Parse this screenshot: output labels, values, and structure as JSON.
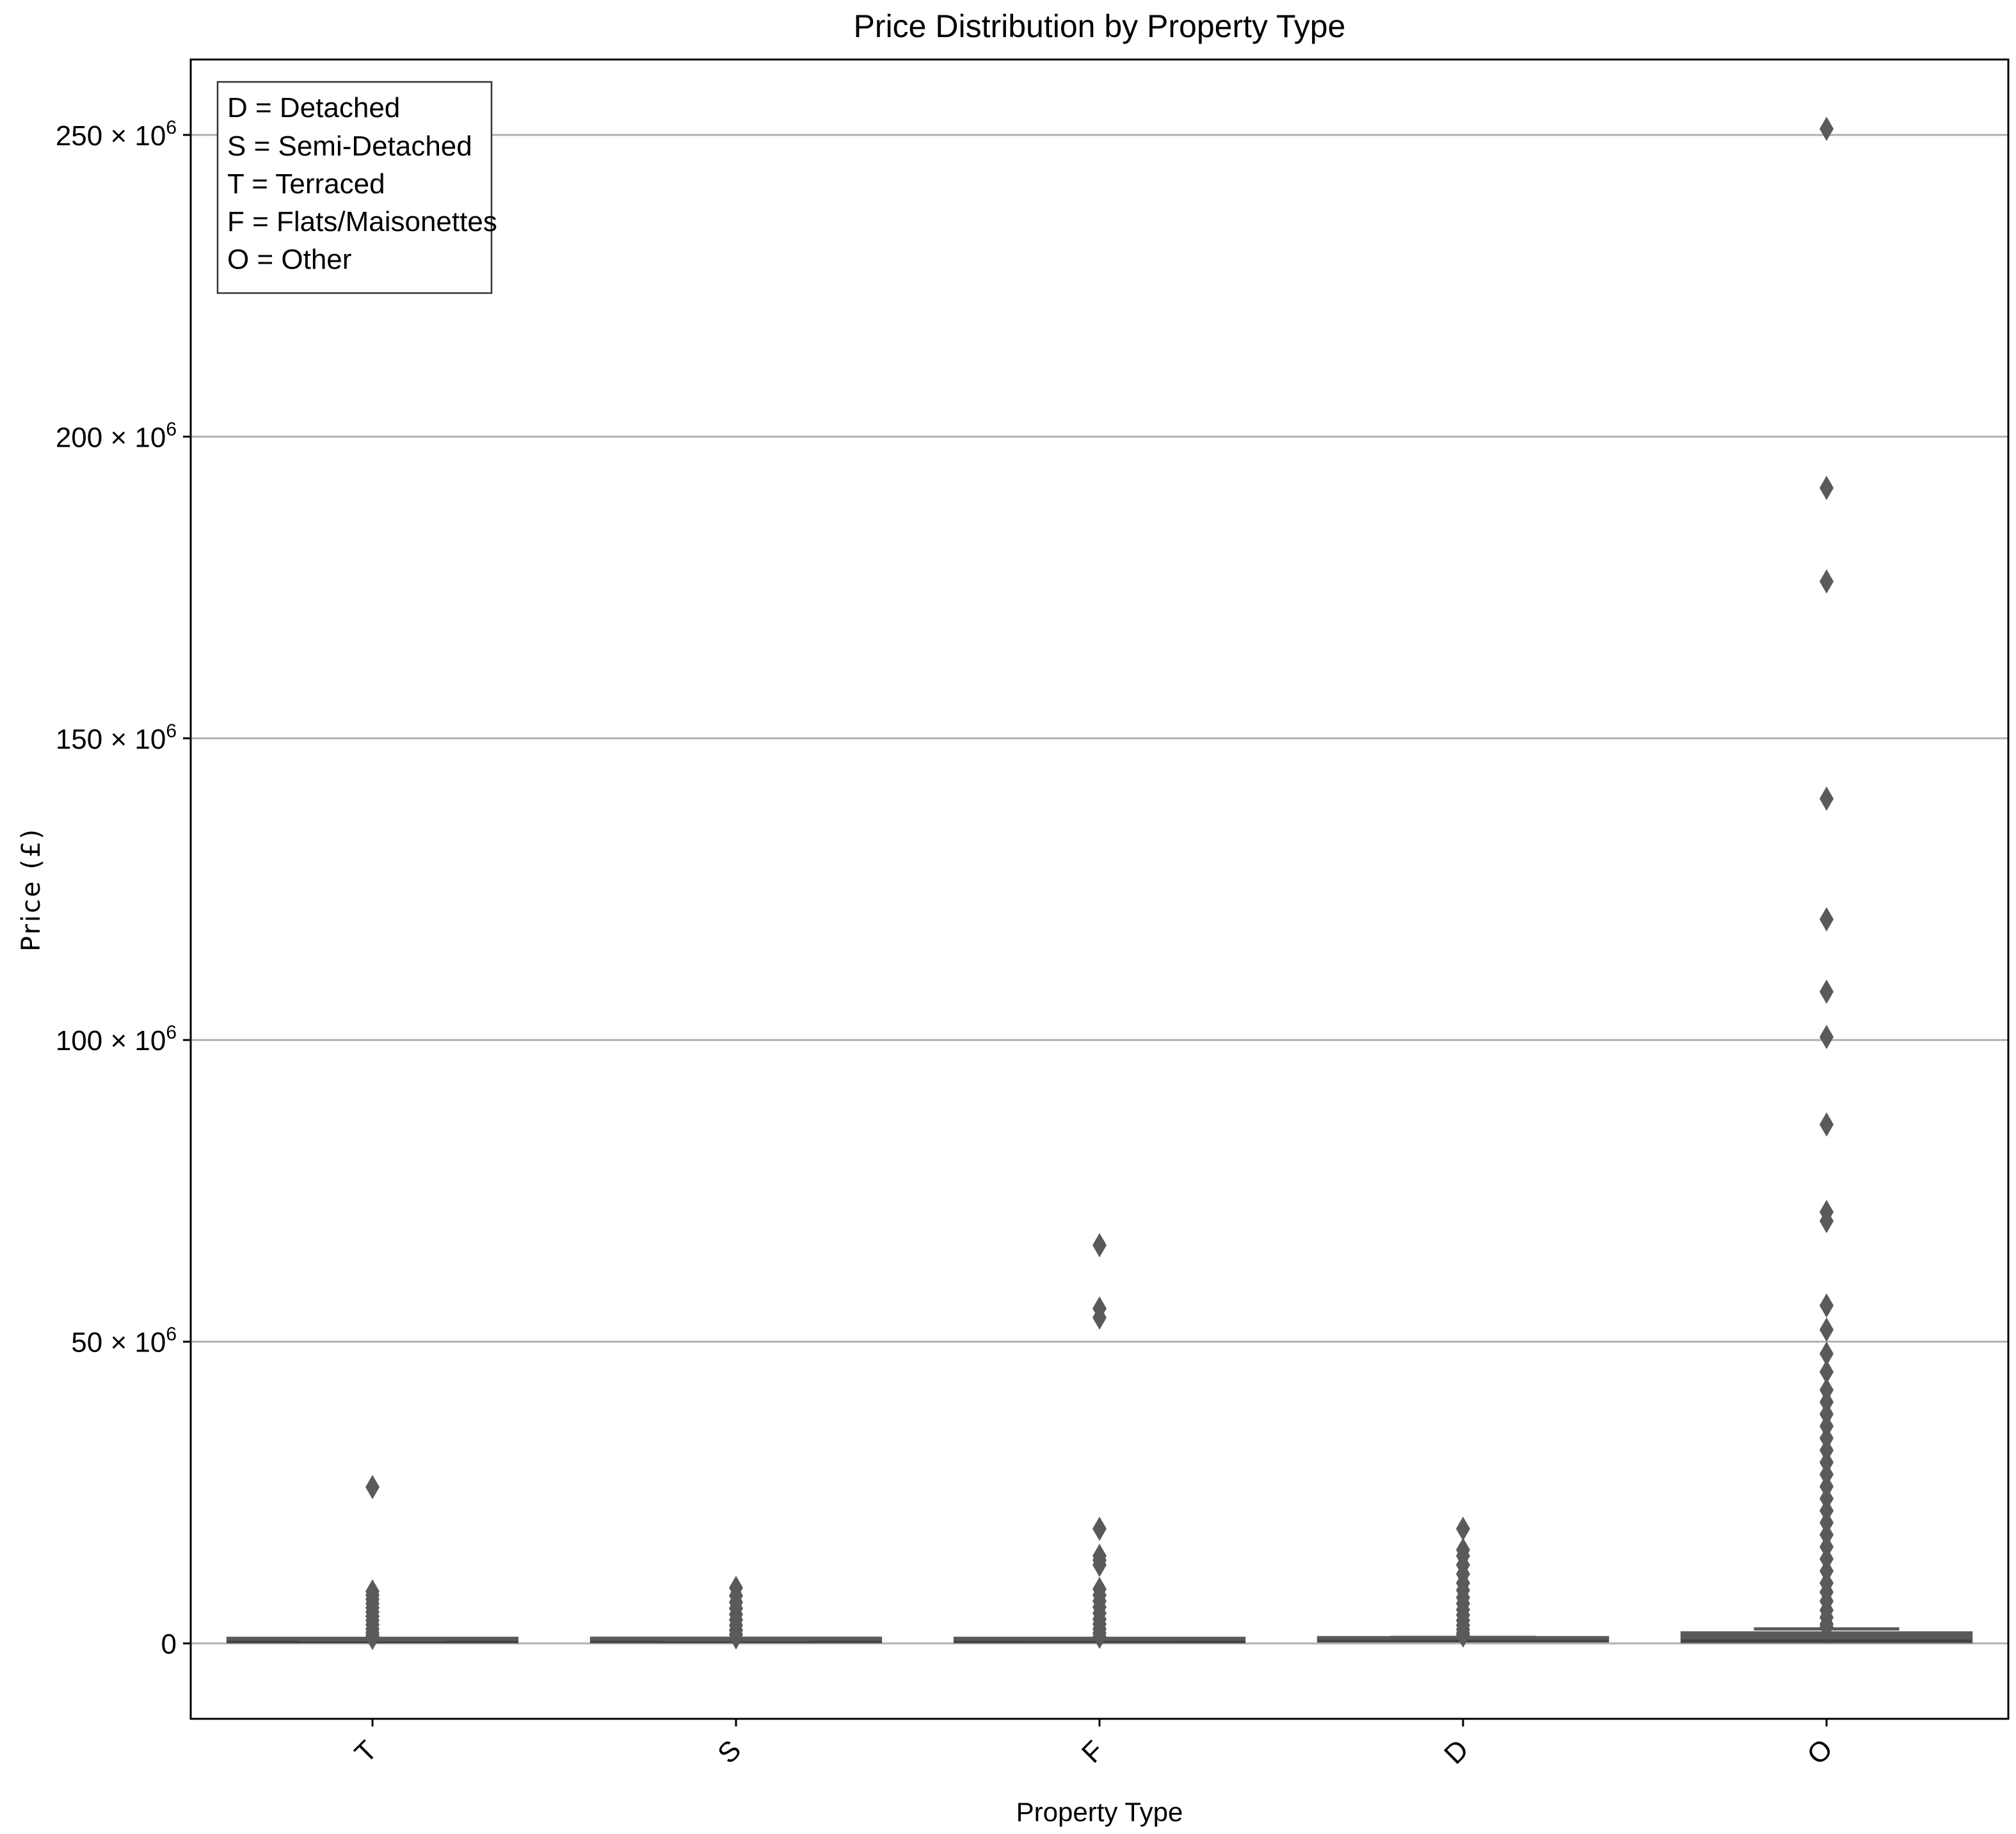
{
  "chart_data": {
    "type": "box",
    "title": "Price Distribution by Property Type",
    "xlabel": "Property Type",
    "ylabel": "Price (£)",
    "categories": [
      "T",
      "S",
      "F",
      "D",
      "O"
    ],
    "ylim": [
      -12500000,
      262500000
    ],
    "yticks": [
      0,
      50000000,
      100000000,
      150000000,
      200000000,
      250000000
    ],
    "ytick_labels": [
      "0",
      "50 × 10⁶",
      "100 × 10⁶",
      "150 × 10⁶",
      "200 × 10⁶",
      "250 × 10⁶"
    ],
    "grid": "y",
    "legend": {
      "placement": "top-left",
      "entries": [
        "D = Detached",
        "S = Semi-Detached",
        "T = Terraced",
        "F = Flats/Maisonettes",
        "O = Other"
      ]
    },
    "colors": {
      "box": "#5a5a5a",
      "outlier": "#5a5a5a",
      "grid": "#b0b0b0"
    },
    "boxes": [
      {
        "category": "T",
        "q1": 150000,
        "median": 220000,
        "q3": 330000,
        "whisker_low": 1,
        "whisker_high": 600000,
        "outliers": [
          25900000,
          8600000,
          8000000,
          7300000,
          6600000,
          5900000,
          5200000,
          4500000,
          3800000,
          3100000,
          2400000,
          1800000,
          1300000,
          900000
        ]
      },
      {
        "category": "S",
        "q1": 170000,
        "median": 240000,
        "q3": 340000,
        "whisker_low": 1,
        "whisker_high": 600000,
        "outliers": [
          9200000,
          7900000,
          6800000,
          5800000,
          4800000,
          3900000,
          3000000,
          2200000,
          1500000,
          1000000
        ]
      },
      {
        "category": "F",
        "q1": 150000,
        "median": 240000,
        "q3": 380000,
        "whisker_low": 1,
        "whisker_high": 720000,
        "outliers": [
          66000000,
          55500000,
          54000000,
          19000000,
          14500000,
          13800000,
          13000000,
          9000000,
          8000000,
          7000000,
          6000000,
          5000000,
          4000000,
          3200000,
          2400000,
          1700000,
          1100000
        ]
      },
      {
        "category": "D",
        "q1": 260000,
        "median": 380000,
        "q3": 560000,
        "whisker_low": 1,
        "whisker_high": 1000000,
        "outliers": [
          19000000,
          15500000,
          14500000,
          13000000,
          11500000,
          10000000,
          8800000,
          7600000,
          6600000,
          5600000,
          4700000,
          3800000,
          3000000,
          2300000,
          1700000,
          1300000
        ]
      },
      {
        "category": "O",
        "q1": 120000,
        "median": 450000,
        "q3": 1900000,
        "whisker_low": 1,
        "whisker_high": 2400000,
        "outliers": [
          251000000,
          191500000,
          176000000,
          140000000,
          120000000,
          108000000,
          100500000,
          86000000,
          71500000,
          70000000,
          56000000,
          52000000,
          48000000,
          45000000,
          42000000,
          40000000,
          38000000,
          36000000,
          34000000,
          32000000,
          30000000,
          28000000,
          26000000,
          24000000,
          22000000,
          20000000,
          18000000,
          16000000,
          14000000,
          12000000,
          10000000,
          8500000,
          7000000,
          5500000,
          4300000,
          3200000,
          2700000
        ]
      }
    ]
  }
}
